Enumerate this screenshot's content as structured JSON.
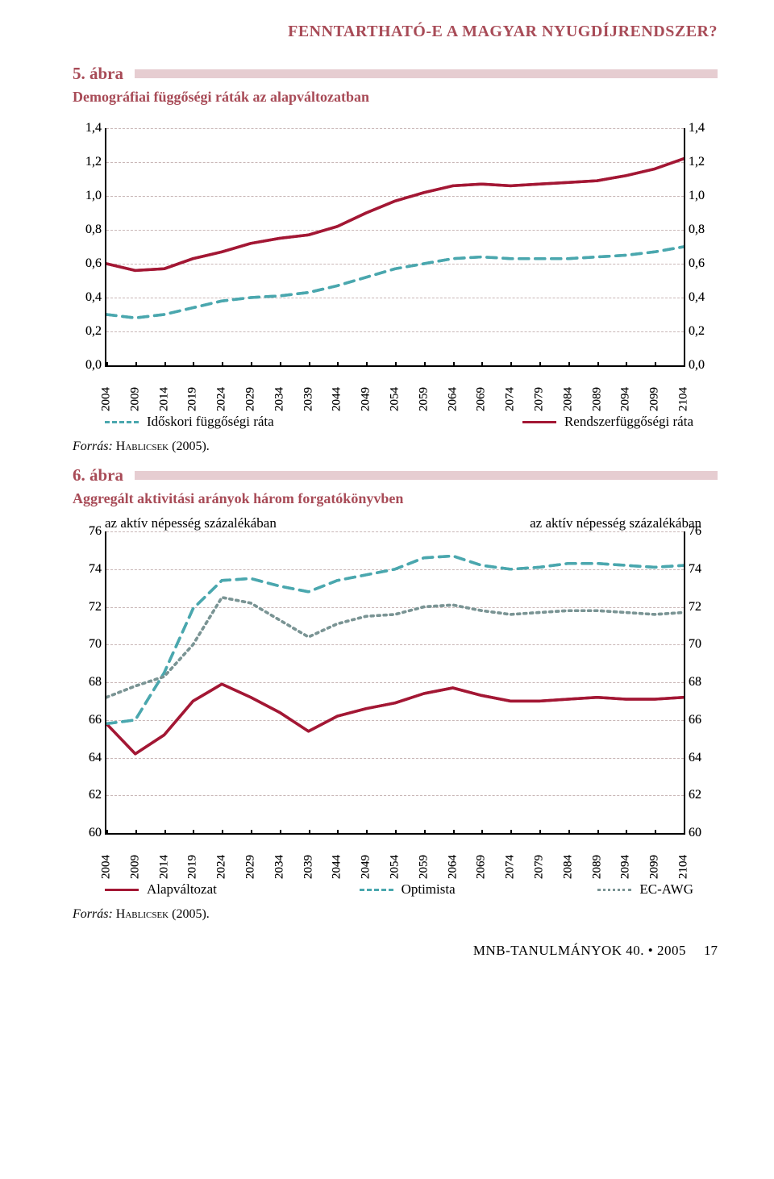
{
  "colors": {
    "accent": "#a84b57",
    "title_bar": "#e6cdd1",
    "series_solid": "#a31734",
    "series_dash": "#4aa7ae",
    "series_dot": "#7a9494",
    "grid": "#b8a0a0",
    "text": "#000000"
  },
  "running_header": "FENNTARTHATÓ-E A MAGYAR NYUGDÍJRENDSZER?",
  "fig5": {
    "number": "5. ábra",
    "title": "Demográfiai függőségi ráták az alapváltozatban",
    "source_label": "Forrás:",
    "source_value": "Hablicsek (2005).",
    "y": {
      "min": 0.0,
      "max": 1.4,
      "step": 0.2,
      "format": "comma1"
    },
    "x_labels": [
      "2004",
      "2009",
      "2014",
      "2019",
      "2024",
      "2029",
      "2034",
      "2039",
      "2044",
      "2049",
      "2054",
      "2059",
      "2064",
      "2069",
      "2074",
      "2079",
      "2084",
      "2089",
      "2094",
      "2099",
      "2104"
    ],
    "series": [
      {
        "name": "Időskori függőségi ráta",
        "style": "dash",
        "color_key": "series_dash",
        "values": [
          0.3,
          0.28,
          0.3,
          0.34,
          0.38,
          0.4,
          0.41,
          0.43,
          0.47,
          0.52,
          0.57,
          0.6,
          0.63,
          0.64,
          0.63,
          0.63,
          0.63,
          0.64,
          0.65,
          0.67,
          0.7
        ]
      },
      {
        "name": "Rendszerfüggőségi ráta",
        "style": "solid",
        "color_key": "series_solid",
        "values": [
          0.6,
          0.56,
          0.57,
          0.63,
          0.67,
          0.72,
          0.75,
          0.77,
          0.82,
          0.9,
          0.97,
          1.02,
          1.06,
          1.07,
          1.06,
          1.07,
          1.08,
          1.09,
          1.12,
          1.16,
          1.22
        ]
      }
    ]
  },
  "fig6": {
    "number": "6. ábra",
    "title": "Aggregált aktivitási arányok három forgatókönyvben",
    "axis_title_left": "az aktív népesség százalékában",
    "axis_title_right": "az aktív népesség százalékában",
    "source_label": "Forrás:",
    "source_value": "Hablicsek (2005).",
    "y": {
      "min": 60,
      "max": 76,
      "step": 2,
      "format": "int"
    },
    "x_labels": [
      "2004",
      "2009",
      "2014",
      "2019",
      "2024",
      "2029",
      "2034",
      "2039",
      "2044",
      "2049",
      "2054",
      "2059",
      "2064",
      "2069",
      "2074",
      "2079",
      "2084",
      "2089",
      "2094",
      "2099",
      "2104"
    ],
    "series": [
      {
        "name": "Alapváltozat",
        "style": "solid",
        "color_key": "series_solid",
        "values": [
          65.8,
          64.2,
          65.2,
          67.0,
          67.9,
          67.2,
          66.4,
          65.4,
          66.2,
          66.6,
          66.9,
          67.4,
          67.7,
          67.3,
          67.0,
          67.0,
          67.1,
          67.2,
          67.1,
          67.1,
          67.2
        ]
      },
      {
        "name": "Optimista",
        "style": "dash",
        "color_key": "series_dash",
        "values": [
          65.8,
          66.0,
          68.5,
          71.9,
          73.4,
          73.5,
          73.1,
          72.8,
          73.4,
          73.7,
          74.0,
          74.6,
          74.7,
          74.2,
          74.0,
          74.1,
          74.3,
          74.3,
          74.2,
          74.1,
          74.2
        ]
      },
      {
        "name": "EC-AWG",
        "style": "dot",
        "color_key": "series_dot",
        "values": [
          67.2,
          67.8,
          68.3,
          70.0,
          72.5,
          72.2,
          71.3,
          70.4,
          71.1,
          71.5,
          71.6,
          72.0,
          72.1,
          71.8,
          71.6,
          71.7,
          71.8,
          71.8,
          71.7,
          71.6,
          71.7
        ]
      }
    ]
  },
  "footer": {
    "publication": "MNB-TANULMÁNYOK 40. • 2005",
    "page": "17"
  }
}
